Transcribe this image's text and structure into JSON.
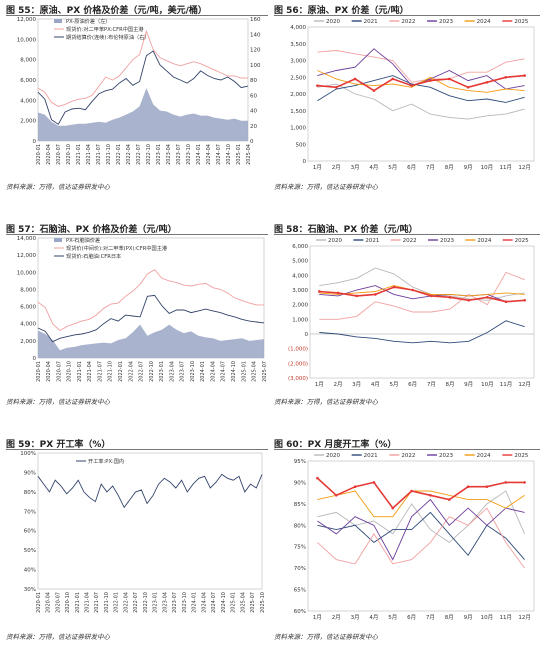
{
  "panels": [
    {
      "title": "图 55：原油、PX 价格及价差（元/吨，美元/桶）",
      "source": "资料来源：万得，信达证券研发中心",
      "chart_data": {
        "type": "area+line",
        "ylim_left": [
          0,
          12000
        ],
        "yticks_left": [
          "0",
          "2,000",
          "4,000",
          "6,000",
          "8,000",
          "10,000",
          "12,000"
        ],
        "ylim_right": [
          0,
          160
        ],
        "yticks_right": [
          "0",
          "20",
          "40",
          "60",
          "80",
          "100",
          "120",
          "140",
          "160"
        ],
        "xticks": [
          "2020-01",
          "2020-04",
          "2020-07",
          "2020-10",
          "2021-01",
          "2021-04",
          "2021-07",
          "2021-10",
          "2022-01",
          "2022-04",
          "2022-07",
          "2022-10",
          "2023-01",
          "2023-04",
          "2023-07",
          "2023-10",
          "2024-01",
          "2024-04",
          "2024-07",
          "2024-10",
          "2025-01",
          "2025-04"
        ],
        "series": [
          {
            "name": "PX-原油价差（左）",
            "color": "#9aa6c6",
            "kind": "area",
            "axis": "left",
            "values": [
              2800,
              2600,
              1900,
              1500,
              1500,
              1600,
              1700,
              1700,
              1800,
              1900,
              1800,
              2100,
              2300,
              2600,
              2900,
              3400,
              5200,
              3600,
              3000,
              2900,
              2600,
              2400,
              2600,
              2700,
              2500,
              2500,
              2300,
              2200,
              2100,
              2200,
              2000,
              2000
            ]
          },
          {
            "name": "现货价:对二甲苯PX:CFR中国主港",
            "color": "#f0a0a0",
            "kind": "line",
            "axis": "left",
            "values": [
              5200,
              4800,
              3800,
              3400,
              3600,
              3900,
              4100,
              4200,
              4500,
              5400,
              6300,
              6000,
              6400,
              7200,
              8000,
              8500,
              10800,
              9000,
              8200,
              7900,
              7600,
              7400,
              7600,
              7800,
              7600,
              7300,
              7000,
              6700,
              6400,
              6400,
              6200,
              6200
            ]
          },
          {
            "name": "期货结算价(连续):布伦特原油（右）",
            "color": "#33446a",
            "kind": "line",
            "axis": "right",
            "values": [
              64,
              55,
              28,
              22,
              38,
              42,
              43,
              41,
              52,
              62,
              66,
              68,
              76,
              82,
              73,
              78,
              112,
              118,
              100,
              92,
              84,
              80,
              76,
              82,
              92,
              86,
              82,
              80,
              84,
              78,
              70,
              72
            ]
          }
        ]
      }
    },
    {
      "title": "图 56：原油、PX 价差（元/吨）",
      "source": "资料来源：万得，信达证券研发中心",
      "chart_data": {
        "type": "line",
        "ylim": [
          0,
          4000
        ],
        "yticks": [
          "0",
          "500",
          "1,000",
          "1,500",
          "2,000",
          "2,500",
          "3,000",
          "3,500",
          "4,000"
        ],
        "categories": [
          "1月",
          "2月",
          "3月",
          "4月",
          "5月",
          "6月",
          "7月",
          "8月",
          "9月",
          "10月",
          "11月",
          "12月"
        ],
        "series": [
          {
            "name": "2020",
            "color": "#b8b8b8",
            "values": [
              2200,
              2300,
              2000,
              1850,
              1500,
              1700,
              1400,
              1300,
              1250,
              1350,
              1400,
              1550
            ]
          },
          {
            "name": "2021",
            "color": "#2e4a7a",
            "values": [
              1800,
              2150,
              2250,
              2400,
              2550,
              2300,
              2200,
              1950,
              1800,
              1850,
              1750,
              1900
            ]
          },
          {
            "name": "2022",
            "color": "#f2a0a0",
            "values": [
              3250,
              3300,
              3200,
              3100,
              3000,
              2350,
              2450,
              2450,
              2650,
              2650,
              2950,
              3050
            ]
          },
          {
            "name": "2023",
            "color": "#6a3d9a",
            "values": [
              2550,
              2700,
              2800,
              3350,
              2900,
              2250,
              2450,
              2700,
              2400,
              2550,
              2150,
              2250
            ]
          },
          {
            "name": "2024",
            "color": "#f39c12",
            "values": [
              2700,
              2450,
              2300,
              2250,
              2300,
              2200,
              2500,
              2200,
              2100,
              2050,
              2150,
              2100
            ]
          },
          {
            "name": "2025",
            "color": "#e53935",
            "values": [
              2250,
              2200,
              2450,
              2100,
              2450,
              2250,
              2400,
              2450,
              2200,
              2350,
              2500,
              2550
            ]
          }
        ]
      }
    },
    {
      "title": "图 57：石脑油、PX 价格及价差（元/吨）",
      "source": "资料来源：万得，信达证券研发中心",
      "chart_data": {
        "type": "area+line",
        "ylim": [
          0,
          14000
        ],
        "yticks": [
          "0",
          "2,000",
          "4,000",
          "6,000",
          "8,000",
          "10,000",
          "12,000",
          "14,000"
        ],
        "xticks": [
          "2020-01",
          "2020-04",
          "2020-07",
          "2020-10",
          "2021-01",
          "2021-04",
          "2021-07",
          "2021-10",
          "2022-01",
          "2022-04",
          "2022-07",
          "2022-10",
          "2023-01",
          "2023-04",
          "2023-07",
          "2023-10",
          "2024-01",
          "2024-04",
          "2024-07",
          "2024-10",
          "2025-01",
          "2025-04",
          "2025-07"
        ],
        "series": [
          {
            "name": "PX-石脑油价差",
            "color": "#9aa6c6",
            "kind": "area",
            "values": [
              3200,
              2800,
              2100,
              900,
              1200,
              1300,
              1500,
              1600,
              1700,
              1800,
              1700,
              2100,
              2300,
              3000,
              3900,
              2600,
              3000,
              3300,
              3900,
              3300,
              2900,
              3100,
              2600,
              2400,
              2300,
              2000,
              2100,
              2200,
              2300,
              2000,
              2100,
              2200
            ]
          },
          {
            "name": "现货价(中间价):对二甲苯(PX):CFR中国主港",
            "color": "#f0a0a0",
            "kind": "line",
            "values": [
              6500,
              5900,
              4000,
              3200,
              3700,
              4000,
              4300,
              4500,
              5000,
              5800,
              6300,
              6400,
              7200,
              7800,
              8600,
              9800,
              10300,
              9300,
              9000,
              8800,
              8500,
              8400,
              8600,
              8700,
              8200,
              8000,
              7600,
              7000,
              6700,
              6400,
              6200,
              6200
            ]
          },
          {
            "name": "现货价:石脑油:CFR日本",
            "color": "#33446a",
            "kind": "line",
            "values": [
              3500,
              3100,
              1900,
              2300,
              2500,
              2700,
              2800,
              3000,
              3300,
              4000,
              4600,
              4300,
              5000,
              4900,
              4800,
              7200,
              7300,
              6100,
              5200,
              5600,
              5600,
              5300,
              5500,
              5700,
              5500,
              5300,
              5000,
              4800,
              4500,
              4300,
              4200,
              4100
            ]
          }
        ]
      }
    },
    {
      "title": "图 58：石脑油、PX 价差（元/吨）",
      "source": "资料来源：万得，信达证券研发中心",
      "chart_data": {
        "type": "line",
        "ylim": [
          -3000,
          6000
        ],
        "yticks": [
          "(3,000)",
          "(2,000)",
          "(1,000)",
          "0",
          "1,000",
          "2,000",
          "3,000",
          "4,000",
          "5,000",
          "6,000"
        ],
        "categories": [
          "1月",
          "2月",
          "3月",
          "4月",
          "5月",
          "6月",
          "7月",
          "8月",
          "9月",
          "10月",
          "11月",
          "12月"
        ],
        "series": [
          {
            "name": "2020",
            "color": "#b8b8b8",
            "values": [
              3300,
              3500,
              3800,
              4500,
              4100,
              3200,
              2700,
              2600,
              2400,
              2300,
              2600,
              2800
            ]
          },
          {
            "name": "2021",
            "color": "#2e4a7a",
            "values": [
              100,
              0,
              -200,
              -300,
              -500,
              -600,
              -500,
              -600,
              -500,
              100,
              900,
              500
            ]
          },
          {
            "name": "2022",
            "color": "#f2a0a0",
            "values": [
              1000,
              1000,
              1200,
              2200,
              1900,
              1500,
              1500,
              1700,
              2700,
              2000,
              4200,
              3700
            ]
          },
          {
            "name": "2023",
            "color": "#6a3d9a",
            "values": [
              2700,
              2600,
              3000,
              3300,
              2700,
              2400,
              2600,
              2700,
              2600,
              2700,
              2200,
              2300
            ]
          },
          {
            "name": "2024",
            "color": "#f39c12",
            "values": [
              2800,
              2700,
              2800,
              2900,
              3300,
              3000,
              2700,
              2700,
              2600,
              2700,
              2800,
              2700
            ]
          },
          {
            "name": "2025",
            "color": "#e53935",
            "values": [
              2900,
              2800,
              2600,
              2700,
              3200,
              3000,
              2600,
              2500,
              2300,
              2500,
              2200,
              2300
            ]
          }
        ]
      }
    },
    {
      "title": "图 59：PX 开工率（%）",
      "source": "资料来源：万得，信达证券研发中心",
      "chart_data": {
        "type": "line",
        "ylim": [
          30,
          100
        ],
        "yticks": [
          "30%",
          "40%",
          "50%",
          "60%",
          "70%",
          "80%",
          "90%",
          "100%"
        ],
        "xticks": [
          "2020-01",
          "2020-04",
          "2020-07",
          "2020-10",
          "2021-01",
          "2021-04",
          "2021-07",
          "2021-10",
          "2022-01",
          "2022-04",
          "2022-07",
          "2022-10",
          "2023-01",
          "2023-04",
          "2023-07",
          "2023-10",
          "2024-01",
          "2024-04",
          "2024-07",
          "2024-10",
          "2025-01",
          "2025-04",
          "2025-07",
          "2025-10"
        ],
        "series": [
          {
            "name": "开工率:PX:国内",
            "color": "#33446a",
            "values": [
              88,
              84,
              80,
              86,
              83,
              79,
              82,
              86,
              80,
              77,
              75,
              84,
              80,
              83,
              78,
              72,
              76,
              80,
              81,
              74,
              78,
              84,
              87,
              85,
              82,
              86,
              80,
              84,
              87,
              88,
              82,
              85,
              89,
              87,
              86,
              88,
              80,
              84,
              82,
              89
            ]
          }
        ]
      }
    },
    {
      "title": "图 60：PX 月度开工率（%）",
      "source": "资料来源：万得，信达证券研发中心",
      "chart_data": {
        "type": "line",
        "ylim": [
          60,
          95
        ],
        "yticks": [
          "60%",
          "65%",
          "70%",
          "75%",
          "80%",
          "85%",
          "90%",
          "95%"
        ],
        "categories": [
          "1月",
          "2月",
          "3月",
          "4月",
          "5月",
          "6月",
          "7月",
          "8月",
          "9月",
          "10月",
          "11月",
          "12月"
        ],
        "series": [
          {
            "name": "2020",
            "color": "#b8b8b8",
            "values": [
              82,
              83,
              80,
              81,
              78,
              85,
              79,
              76,
              80,
              85,
              88,
              78
            ]
          },
          {
            "name": "2021",
            "color": "#2e4a7a",
            "values": [
              80,
              79,
              80,
              76,
              79,
              79,
              83,
              78,
              73,
              80,
              77,
              72
            ]
          },
          {
            "name": "2022",
            "color": "#f2a0a0",
            "values": [
              76,
              72,
              71,
              78,
              71,
              72,
              76,
              82,
              80,
              84,
              76,
              70
            ]
          },
          {
            "name": "2023",
            "color": "#6a3d9a",
            "values": [
              81,
              78,
              82,
              80,
              72,
              82,
              86,
              80,
              84,
              80,
              84,
              83
            ]
          },
          {
            "name": "2024",
            "color": "#f39c12",
            "values": [
              86,
              87,
              88,
              82,
              82,
              88,
              88,
              87,
              86,
              86,
              84,
              87
            ]
          },
          {
            "name": "2025",
            "color": "#e53935",
            "values": [
              91,
              87,
              89,
              90,
              84,
              88,
              87,
              86,
              89,
              89,
              90,
              90
            ]
          }
        ]
      }
    }
  ]
}
